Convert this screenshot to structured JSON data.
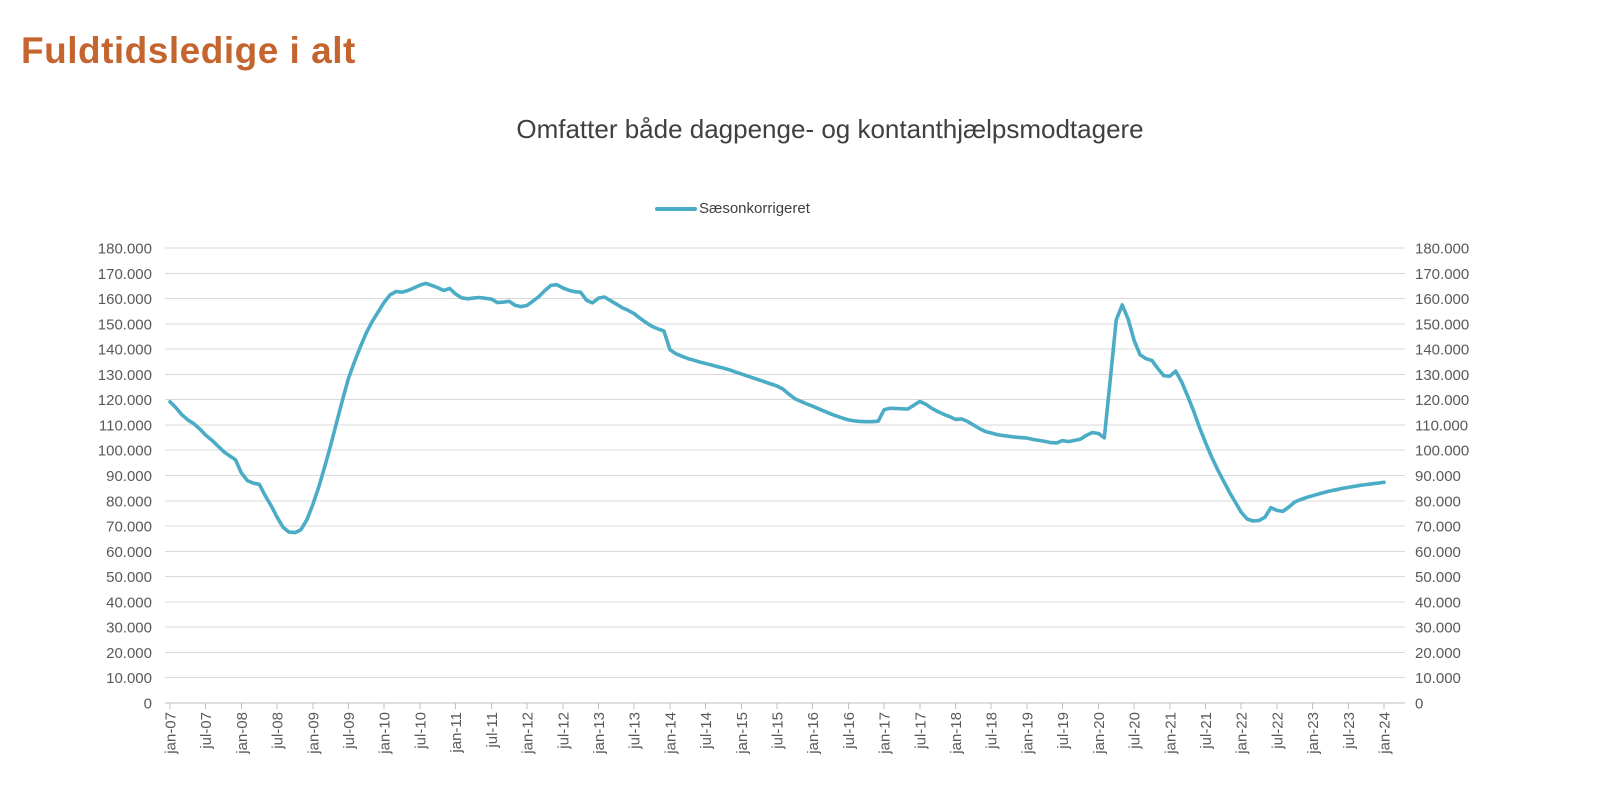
{
  "header": {
    "title": "Fuldtidsledige i alt",
    "title_color": "#C4652F"
  },
  "chart": {
    "legend_label": "Sæsonkorrigeret"
  },
  "colors": {
    "line": "#4BACC6",
    "gridline": "#D9D9D9",
    "axis_line": "#BFBFBF",
    "tick_label": "#595959",
    "subtitle": "#404040"
  },
  "chart_data": {
    "type": "line",
    "title": "Omfatter både dagpenge- og kontanthjælpsmodtagere",
    "legend_position": "top-center",
    "grid": true,
    "x_unit": "month",
    "x_range": [
      "jan-07",
      "jan-24"
    ],
    "x_tick_labels": [
      "jan-07",
      "jul-07",
      "jan-08",
      "jul-08",
      "jan-09",
      "jul-09",
      "jan-10",
      "jul-10",
      "jan-11",
      "jul-11",
      "jan-12",
      "jul-12",
      "jan-13",
      "jul-13",
      "jan-14",
      "jul-14",
      "jan-15",
      "jul-15",
      "jan-16",
      "jul-16",
      "jan-17",
      "jul-17",
      "jan-18",
      "jul-18",
      "jan-19",
      "jul-19",
      "jan-20",
      "jul-20",
      "jan-21",
      "jul-21",
      "jan-22",
      "jul-22",
      "jan-23",
      "jul-23",
      "jan-24"
    ],
    "x_ticks_every_n_months": 6,
    "y_axis": {
      "min": 0,
      "max": 180000,
      "step": 10000,
      "sides": "both",
      "tick_labels": [
        "0",
        "10.000",
        "20.000",
        "30.000",
        "40.000",
        "50.000",
        "60.000",
        "70.000",
        "80.000",
        "90.000",
        "100.000",
        "110.000",
        "120.000",
        "130.000",
        "140.000",
        "150.000",
        "160.000",
        "170.000",
        "180.000"
      ]
    },
    "series": [
      {
        "name": "Sæsonkorrigeret",
        "color": "#4BACC6",
        "start_month": "jan-07",
        "values": [
          119200,
          116800,
          114000,
          112000,
          110500,
          108400,
          106000,
          104000,
          101800,
          99500,
          97800,
          96200,
          91000,
          88000,
          87000,
          86500,
          82000,
          78000,
          73500,
          69500,
          67600,
          67400,
          68500,
          72500,
          78500,
          85500,
          93500,
          102000,
          111000,
          120000,
          128500,
          135000,
          141000,
          146500,
          151000,
          154800,
          158500,
          161500,
          162800,
          162500,
          163200,
          164200,
          165300,
          166000,
          165200,
          164300,
          163200,
          164000,
          161800,
          160300,
          159900,
          160200,
          160400,
          160100,
          159800,
          158400,
          158600,
          158900,
          157300,
          156800,
          157300,
          159000,
          160800,
          163200,
          165200,
          165500,
          164200,
          163300,
          162700,
          162500,
          159300,
          158300,
          160200,
          160600,
          159200,
          157800,
          156400,
          155300,
          154000,
          152200,
          150500,
          149000,
          148000,
          147200,
          139800,
          138200,
          137200,
          136300,
          135600,
          134900,
          134300,
          133700,
          133100,
          132500,
          131800,
          131000,
          130200,
          129400,
          128600,
          127800,
          127000,
          126200,
          125400,
          124200,
          122200,
          120400,
          119300,
          118300,
          117400,
          116400,
          115400,
          114400,
          113500,
          112700,
          112000,
          111600,
          111400,
          111300,
          111300,
          111500,
          116000,
          116600,
          116500,
          116400,
          116300,
          117800,
          119300,
          118200,
          116600,
          115300,
          114200,
          113300,
          112200,
          112400,
          111400,
          110000,
          108600,
          107400,
          106800,
          106200,
          105800,
          105500,
          105200,
          105000,
          104800,
          104300,
          103900,
          103500,
          103000,
          102900,
          103800,
          103400,
          103900,
          104400,
          105900,
          107000,
          106600,
          104900,
          128000,
          151500,
          157500,
          151900,
          143500,
          137800,
          136200,
          135500,
          132300,
          129500,
          129300,
          131300,
          127000,
          121500,
          115500,
          109000,
          103000,
          97500,
          92500,
          88000,
          83500,
          79500,
          75500,
          72800,
          72000,
          72200,
          73500,
          77300,
          76200,
          75800,
          77500,
          79500,
          80500,
          81300,
          82000,
          82700,
          83300,
          83900,
          84400,
          84900,
          85300,
          85700,
          86100,
          86400,
          86700,
          87000,
          87300
        ]
      }
    ]
  }
}
